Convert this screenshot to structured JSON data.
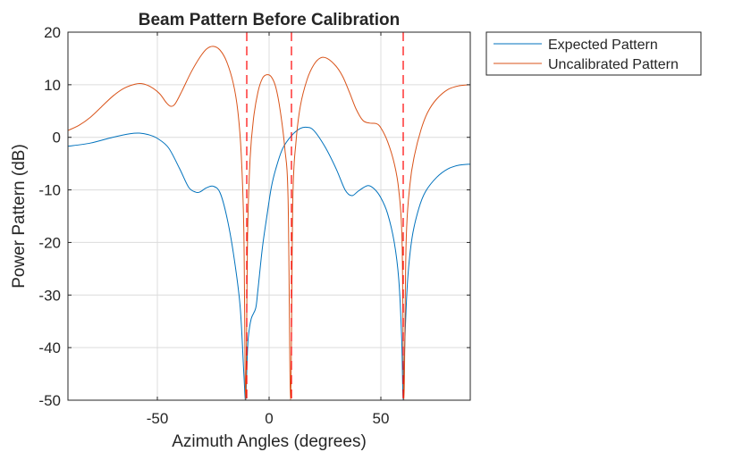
{
  "chart_data": {
    "type": "line",
    "title": "Beam Pattern Before Calibration",
    "xlabel": "Azimuth Angles (degrees)",
    "ylabel": "Power Pattern (dB)",
    "xlim": [
      -90,
      90
    ],
    "ylim": [
      -50,
      20
    ],
    "xticks": [
      -50,
      0,
      50
    ],
    "yticks": [
      -50,
      -40,
      -30,
      -20,
      -10,
      0,
      10,
      20
    ],
    "grid": true,
    "legend_position": "outside-top-right",
    "series": [
      {
        "name": "Expected Pattern",
        "color": "#0072BD",
        "points": [
          [
            -90,
            -1.7
          ],
          [
            -80,
            -1.1
          ],
          [
            -70,
            0
          ],
          [
            -62,
            0.7
          ],
          [
            -58,
            0.8
          ],
          [
            -54,
            0.5
          ],
          [
            -50,
            -0.2
          ],
          [
            -45,
            -2
          ],
          [
            -40,
            -6
          ],
          [
            -36,
            -9.5
          ],
          [
            -33,
            -10.4
          ],
          [
            -31,
            -10.4
          ],
          [
            -28,
            -9.6
          ],
          [
            -25,
            -9.3
          ],
          [
            -22,
            -10.5
          ],
          [
            -19,
            -15
          ],
          [
            -16,
            -22
          ],
          [
            -13,
            -32
          ],
          [
            -11.3,
            -45
          ],
          [
            -10.5,
            -50
          ],
          [
            -9.8,
            -42
          ],
          [
            -9.3,
            -38
          ],
          [
            -8,
            -34.5
          ],
          [
            -6,
            -32.5
          ],
          [
            -5,
            -29
          ],
          [
            -3,
            -21
          ],
          [
            -1,
            -15
          ],
          [
            1,
            -9.5
          ],
          [
            3,
            -6
          ],
          [
            6,
            -2.2
          ],
          [
            10,
            0.3
          ],
          [
            14,
            1.7
          ],
          [
            17,
            1.9
          ],
          [
            20,
            1.3
          ],
          [
            25,
            -1.8
          ],
          [
            30,
            -6
          ],
          [
            34,
            -10
          ],
          [
            37,
            -11.1
          ],
          [
            40,
            -10.2
          ],
          [
            44,
            -9.2
          ],
          [
            47,
            -9.8
          ],
          [
            50,
            -11.5
          ],
          [
            53,
            -14.5
          ],
          [
            56,
            -20
          ],
          [
            58,
            -27
          ],
          [
            59.3,
            -38
          ],
          [
            60,
            -50
          ],
          [
            60.8,
            -38
          ],
          [
            62,
            -27
          ],
          [
            64,
            -19
          ],
          [
            67,
            -13.5
          ],
          [
            70,
            -10.3
          ],
          [
            75,
            -7.6
          ],
          [
            80,
            -6
          ],
          [
            85,
            -5.3
          ],
          [
            90,
            -5.1
          ]
        ]
      },
      {
        "name": "Uncalibrated Pattern",
        "color": "#D95319",
        "points": [
          [
            -90,
            1.3
          ],
          [
            -85,
            2.3
          ],
          [
            -80,
            3.8
          ],
          [
            -75,
            5.8
          ],
          [
            -70,
            7.8
          ],
          [
            -65,
            9.3
          ],
          [
            -60,
            10.1
          ],
          [
            -57,
            10.2
          ],
          [
            -53,
            9.6
          ],
          [
            -49,
            8.3
          ],
          [
            -46,
            6.6
          ],
          [
            -44,
            5.9
          ],
          [
            -42,
            6.4
          ],
          [
            -39,
            8.8
          ],
          [
            -35,
            12.3
          ],
          [
            -31,
            15.2
          ],
          [
            -28,
            16.8
          ],
          [
            -25,
            17.3
          ],
          [
            -22,
            16.6
          ],
          [
            -19,
            14.4
          ],
          [
            -16,
            10.2
          ],
          [
            -14,
            5
          ],
          [
            -12.5,
            -3
          ],
          [
            -11.3,
            -18
          ],
          [
            -10.5,
            -50
          ],
          [
            -9.6,
            -18
          ],
          [
            -8.5,
            -4
          ],
          [
            -7,
            3.5
          ],
          [
            -5,
            8.6
          ],
          [
            -3,
            11.2
          ],
          [
            -1,
            11.9
          ],
          [
            1,
            11.5
          ],
          [
            3,
            9.5
          ],
          [
            5,
            5
          ],
          [
            7,
            -2
          ],
          [
            8.5,
            -12
          ],
          [
            9.6,
            -50
          ],
          [
            10.6,
            -12
          ],
          [
            12,
            -1
          ],
          [
            14,
            6
          ],
          [
            17,
            11
          ],
          [
            20,
            13.8
          ],
          [
            23,
            15.1
          ],
          [
            26,
            15
          ],
          [
            30,
            13.5
          ],
          [
            33,
            11.5
          ],
          [
            36,
            8.5
          ],
          [
            39,
            5.3
          ],
          [
            42,
            3.2
          ],
          [
            45,
            2.7
          ],
          [
            48,
            2.6
          ],
          [
            50,
            1.8
          ],
          [
            53,
            -0.8
          ],
          [
            56,
            -5
          ],
          [
            58,
            -10
          ],
          [
            59.5,
            -20
          ],
          [
            60.3,
            -50
          ],
          [
            61.3,
            -20
          ],
          [
            63,
            -9
          ],
          [
            65,
            -3.5
          ],
          [
            68,
            1.5
          ],
          [
            71,
            4.8
          ],
          [
            75,
            7.3
          ],
          [
            80,
            9.1
          ],
          [
            85,
            9.8
          ],
          [
            90,
            10
          ]
        ]
      }
    ],
    "reference_lines": {
      "color": "#FF0000",
      "x": [
        -10,
        10,
        60
      ]
    }
  }
}
